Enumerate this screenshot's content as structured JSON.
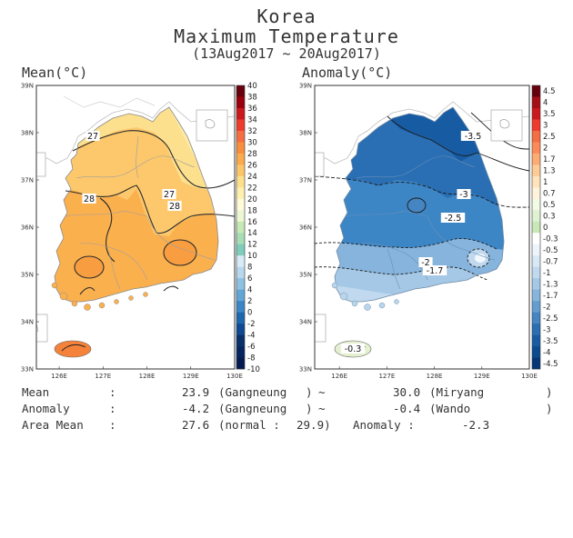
{
  "title": {
    "line1": "Korea",
    "line2": "Maximum Temperature",
    "line3": "(13Aug2017 ~ 20Aug2017)"
  },
  "panels": {
    "mean": {
      "title": "Mean(°C)",
      "colorbar_labels": [
        "40",
        "38",
        "36",
        "34",
        "32",
        "30",
        "28",
        "26",
        "24",
        "22",
        "20",
        "18",
        "16",
        "14",
        "12",
        "10",
        "8",
        "6",
        "4",
        "2",
        "0",
        "-2",
        "-4",
        "-6",
        "-8",
        "-10"
      ],
      "colorbar_colors": [
        "#67000d",
        "#99000d",
        "#cb181d",
        "#ef3b2c",
        "#f46d43",
        "#f98e3c",
        "#fbaa4d",
        "#fdc56a",
        "#fde08b",
        "#fff0b0",
        "#fffbd8",
        "#edf7d4",
        "#c7e9b4",
        "#a8ddb5",
        "#7fcdbb",
        "#d8ebf6",
        "#b8d8ee",
        "#8fc1e3",
        "#62a6d6",
        "#3b86c6",
        "#1e66ad",
        "#0d4a92",
        "#08306b",
        "#062460",
        "#041a50"
      ],
      "contour_labels": [
        "27",
        "28",
        "27",
        "28"
      ]
    },
    "anomaly": {
      "title": "Anomaly(°C)",
      "colorbar_labels": [
        "4.5",
        "4",
        "3.5",
        "3",
        "2.5",
        "2",
        "1.7",
        "1.3",
        "1",
        "0.7",
        "0.5",
        "0.3",
        "0",
        "-0.3",
        "-0.5",
        "-0.7",
        "-1",
        "-1.3",
        "-1.7",
        "-2",
        "-2.5",
        "-3",
        "-3.5",
        "-4",
        "-4.5"
      ],
      "colorbar_colors": [
        "#67000d",
        "#a50f15",
        "#cb181d",
        "#ef3b2c",
        "#f46d43",
        "#fb8a58",
        "#fcab72",
        "#fdcb95",
        "#fee3bb",
        "#fff3dc",
        "#f3fae5",
        "#dff2d2",
        "#c9e8b8",
        "#ffffff",
        "#eef4fb",
        "#d9e8f5",
        "#c0d9ee",
        "#a5c8e6",
        "#86b4dc",
        "#649dd0",
        "#4585c1",
        "#2a6eb3",
        "#175ca3",
        "#0b4a8f",
        "#053676"
      ],
      "contour_labels": [
        "-3.5",
        "-3",
        "-2.5",
        "-2",
        "-1.7",
        "-0.3"
      ]
    },
    "lat_labels": [
      "39N",
      "38N",
      "37N",
      "36N",
      "35N",
      "34N",
      "33N"
    ],
    "lon_labels": [
      "126E",
      "127E",
      "128E",
      "129E",
      "130E"
    ]
  },
  "stats": {
    "mean": {
      "label": "Mean",
      "colon": ":",
      "value_min": "23.9",
      "station_min": "(Gangneung",
      "close_min": ")",
      "tilde": "~",
      "value_max": "30.0",
      "station_max": "(Miryang",
      "close_max": ")"
    },
    "anomaly": {
      "label": "Anomaly",
      "colon": ":",
      "value_min": "-4.2",
      "station_min": "(Gangneung",
      "close_min": ")",
      "tilde": "~",
      "value_max": "-0.4",
      "station_max": "(Wando",
      "close_max": ")"
    },
    "area": {
      "label": "Area Mean",
      "colon": ":",
      "value": "27.6",
      "normal_label": "(normal :",
      "normal_value": "29.9)",
      "anomaly_label": "Anomaly :",
      "anomaly_value": "-2.3"
    }
  }
}
